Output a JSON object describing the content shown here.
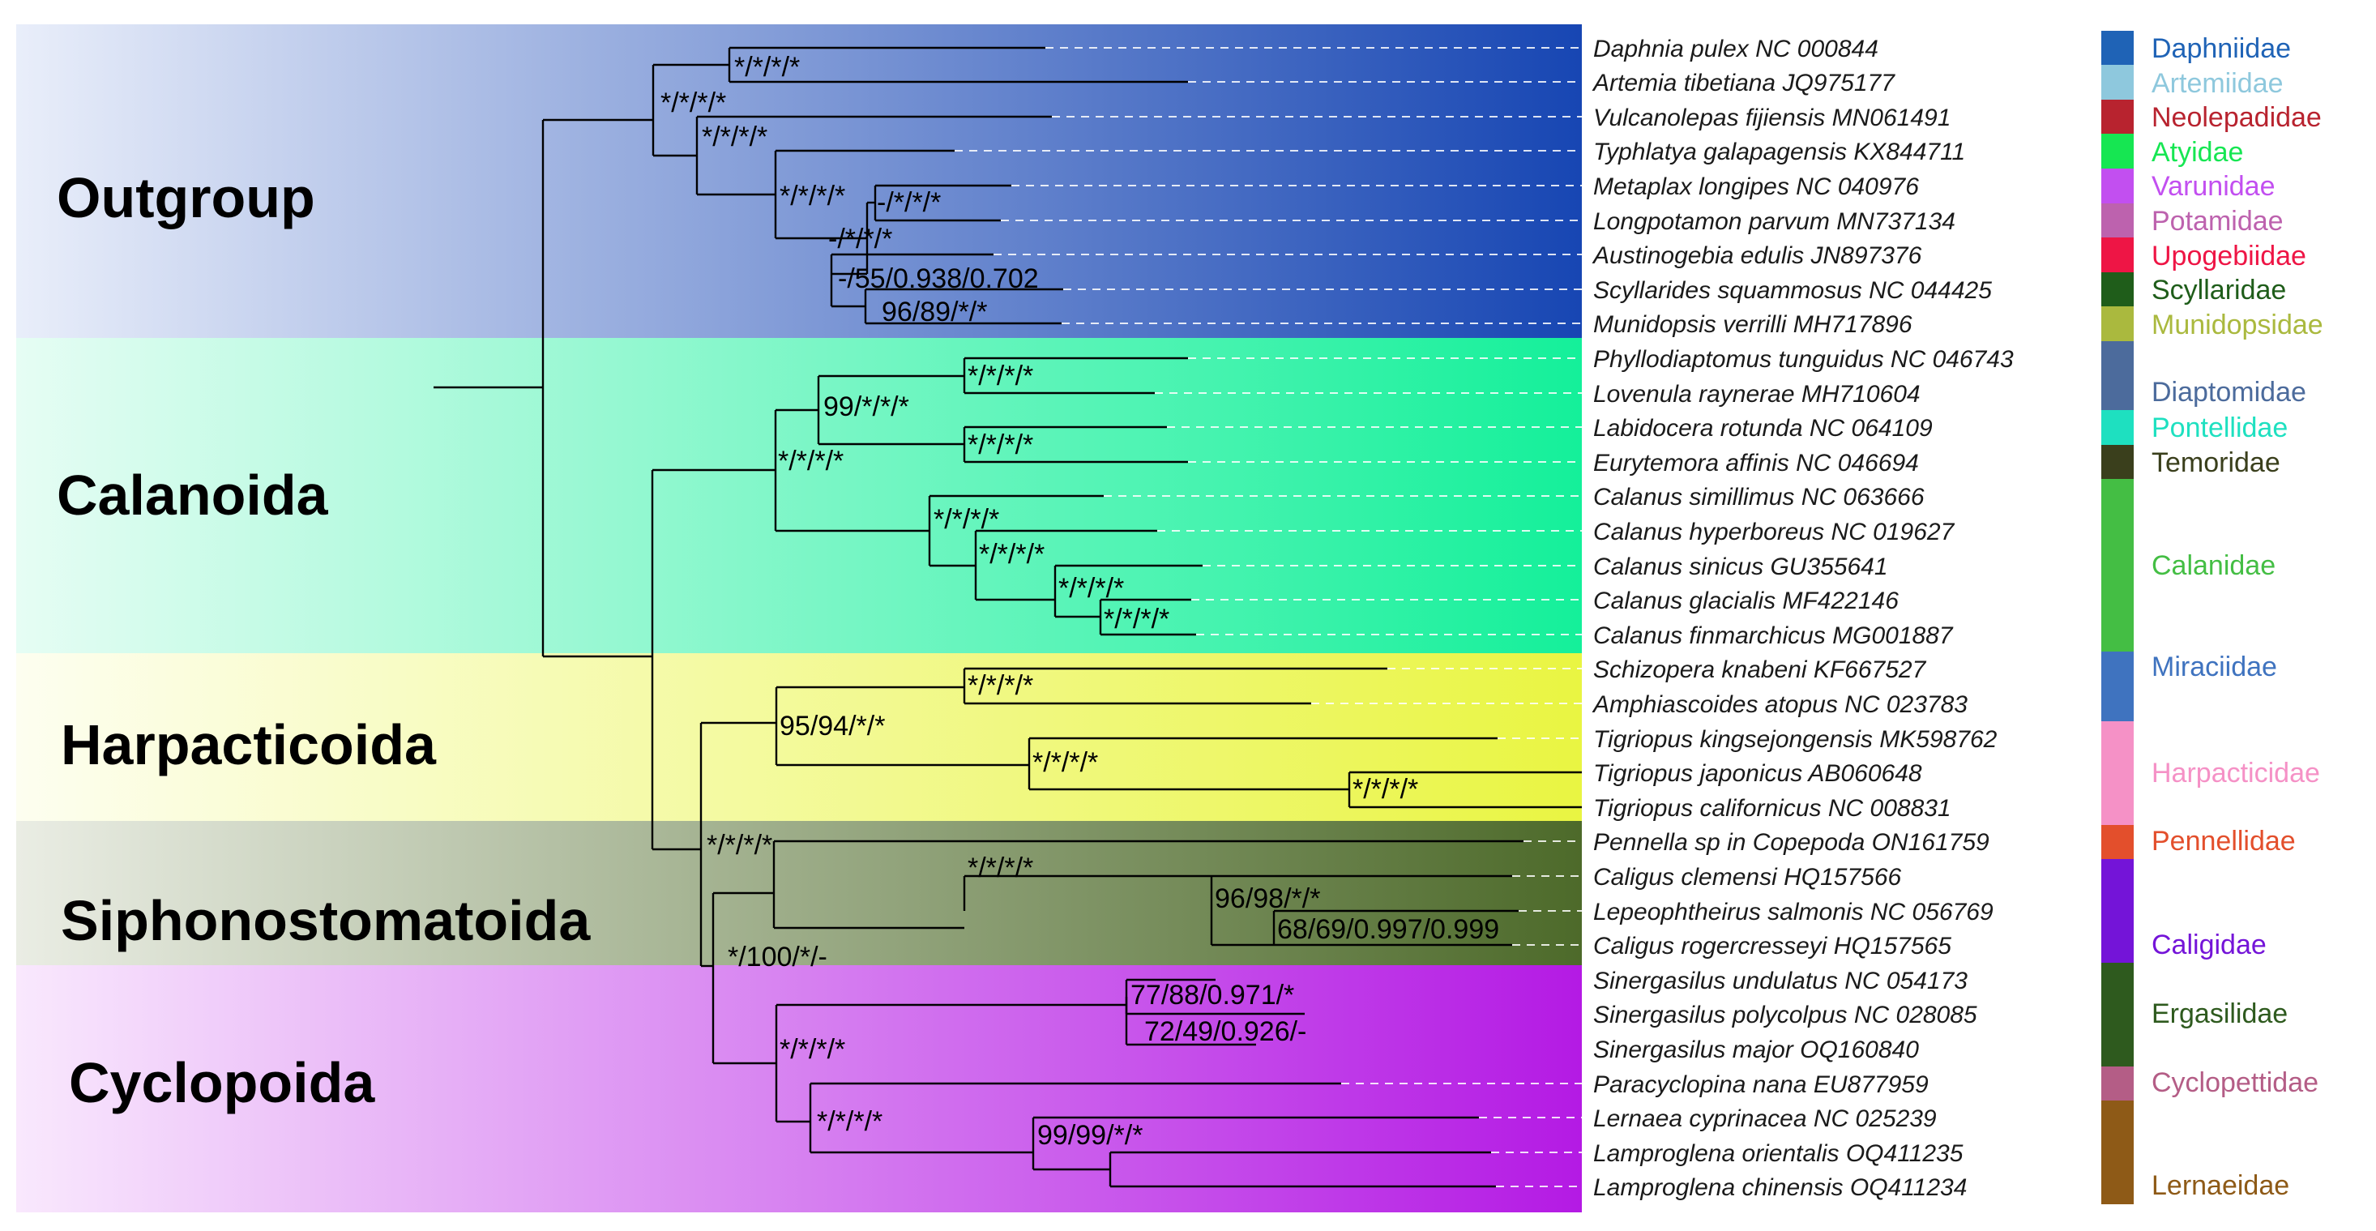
{
  "tree": {
    "groups": [
      {
        "label": "Outgroup",
        "color": "#1746b3"
      },
      {
        "label": "Calanoida",
        "color": "#14f09a"
      },
      {
        "label": "Harpacticoida",
        "color": "#e9f542"
      },
      {
        "label": "Siphonostomatoida",
        "color": "#4d6a2a"
      },
      {
        "label": "Cyclopoida",
        "color": "#b41ae4"
      }
    ],
    "taxa": [
      "Daphnia pulex NC 000844",
      "Artemia tibetiana JQ975177",
      "Vulcanolepas fijiensis MN061491",
      "Typhlatya galapagensis KX844711",
      "Metaplax longipes NC 040976",
      "Longpotamon parvum MN737134",
      "Austinogebia edulis JN897376",
      "Scyllarides squammosus NC 044425",
      "Munidopsis verrilli MH717896",
      "Phyllodiaptomus tunguidus NC 046743",
      "Lovenula raynerae MH710604",
      "Labidocera rotunda NC 064109",
      "Eurytemora affinis NC 046694",
      "Calanus simillimus NC 063666",
      "Calanus hyperboreus NC 019627",
      "Calanus sinicus GU355641",
      "Calanus glacialis MF422146",
      "Calanus finmarchicus MG001887",
      "Schizopera knabeni KF667527",
      "Amphiascoides atopus NC 023783",
      "Tigriopus kingsejongensis MK598762",
      "Tigriopus japonicus AB060648",
      "Tigriopus californicus NC 008831",
      "Pennella sp in Copepoda ON161759",
      "Caligus clemensi HQ157566",
      "Lepeophtheirus salmonis NC 056769",
      "Caligus rogercresseyi HQ157565",
      "Sinergasilus undulatus NC 054173",
      "Sinergasilus polycolpus NC 028085",
      "Sinergasilus major OQ160840",
      "Paracyclopina nana EU877959",
      "Lernaea cyprinacea NC 025239",
      "Lamproglena orientalis OQ411235",
      "Lamproglena chinensis OQ411234"
    ],
    "supports": [
      "*/*/*/*",
      "*/*/*/*",
      "*/*/*/*",
      "*/*/*/*",
      "-/*/*/*",
      "-/*/*/*",
      "-/55/0.938/0.702",
      "96/89/*/*",
      "99/*/*/*",
      "*/*/*/*",
      "*/*/*/*",
      "*/*/*/*",
      "*/*/*/*",
      "*/*/*/*",
      "*/*/*/*",
      "*/*/*/*",
      "95/94/*/*",
      "*/*/*/*",
      "*/*/*/*",
      "*/*/*/*",
      "*/*/*/*",
      "*/*/*/*",
      "96/98/*/*",
      "68/69/0.997/0.999",
      "*/100/*/-",
      "*/*/*/*",
      "77/88/0.971/*",
      "72/49/0.926/-",
      "*/*/*/*",
      "99/99/*/*"
    ]
  },
  "families": [
    {
      "name": "Daphniidae",
      "color": "#1f63b6"
    },
    {
      "name": "Artemiidae",
      "color": "#8ec8dd"
    },
    {
      "name": "Neolepadidae",
      "color": "#b8232f"
    },
    {
      "name": "Atyidae",
      "color": "#16e652"
    },
    {
      "name": "Varunidae",
      "color": "#c24ff0"
    },
    {
      "name": "Potamidae",
      "color": "#bd62ae"
    },
    {
      "name": "Upogebiidae",
      "color": "#ee1545"
    },
    {
      "name": "Scyllaridae",
      "color": "#1f5d1a"
    },
    {
      "name": "Munidopsidae",
      "color": "#aab93e"
    },
    {
      "name": "Diaptomidae",
      "color": "#4c6b9c"
    },
    {
      "name": "Pontellidae",
      "color": "#1ee0c0"
    },
    {
      "name": "Temoridae",
      "color": "#3a3f1c"
    },
    {
      "name": "Calanidae",
      "color": "#44be44"
    },
    {
      "name": "Miraciidae",
      "color": "#3f73bf"
    },
    {
      "name": "Harpacticidae",
      "color": "#f591c6"
    },
    {
      "name": "Pennellidae",
      "color": "#e34f2c"
    },
    {
      "name": "Caligidae",
      "color": "#7414d8"
    },
    {
      "name": "Ergasilidae",
      "color": "#2e5a1e"
    },
    {
      "name": "Cyclopettidae",
      "color": "#b45d86"
    },
    {
      "name": "Lernaeidae",
      "color": "#8e5a17"
    }
  ]
}
